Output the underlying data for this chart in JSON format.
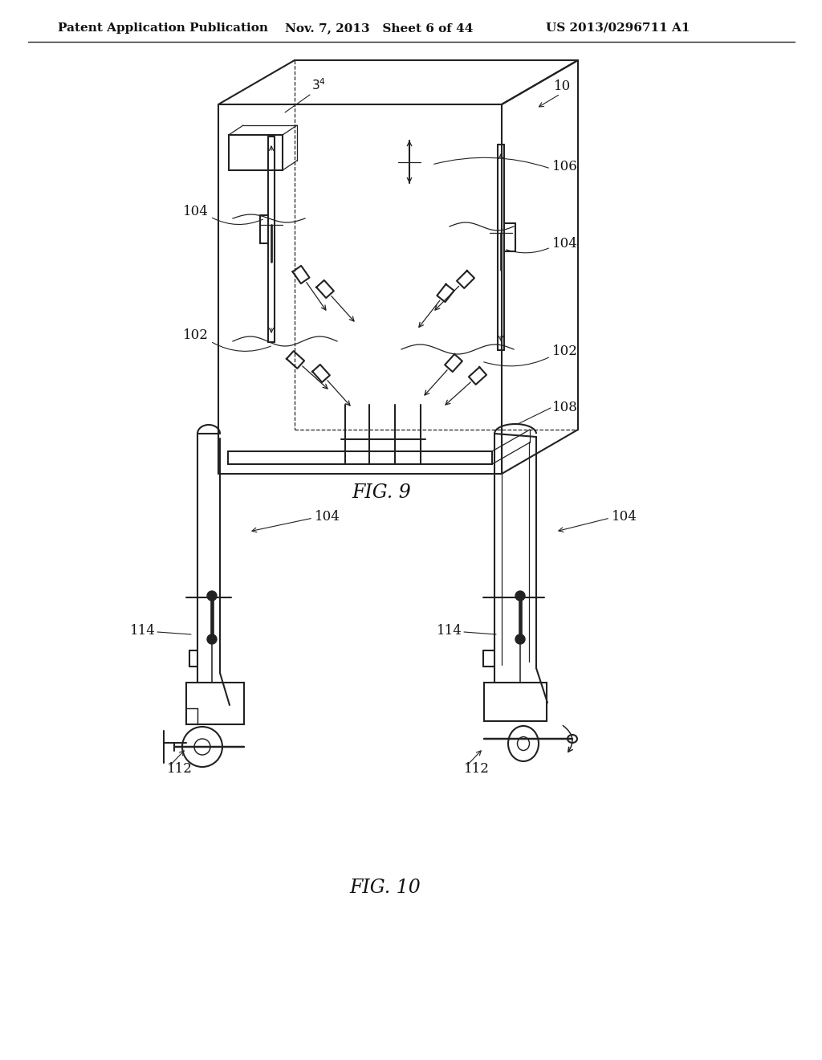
{
  "header_left": "Patent Application Publication",
  "header_mid": "Nov. 7, 2013   Sheet 6 of 44",
  "header_right": "US 2013/0296711 A1",
  "background": "#ffffff",
  "line_color": "#222222",
  "text_color": "#111111",
  "annotation_fontsize": 12,
  "caption_fontsize": 17
}
